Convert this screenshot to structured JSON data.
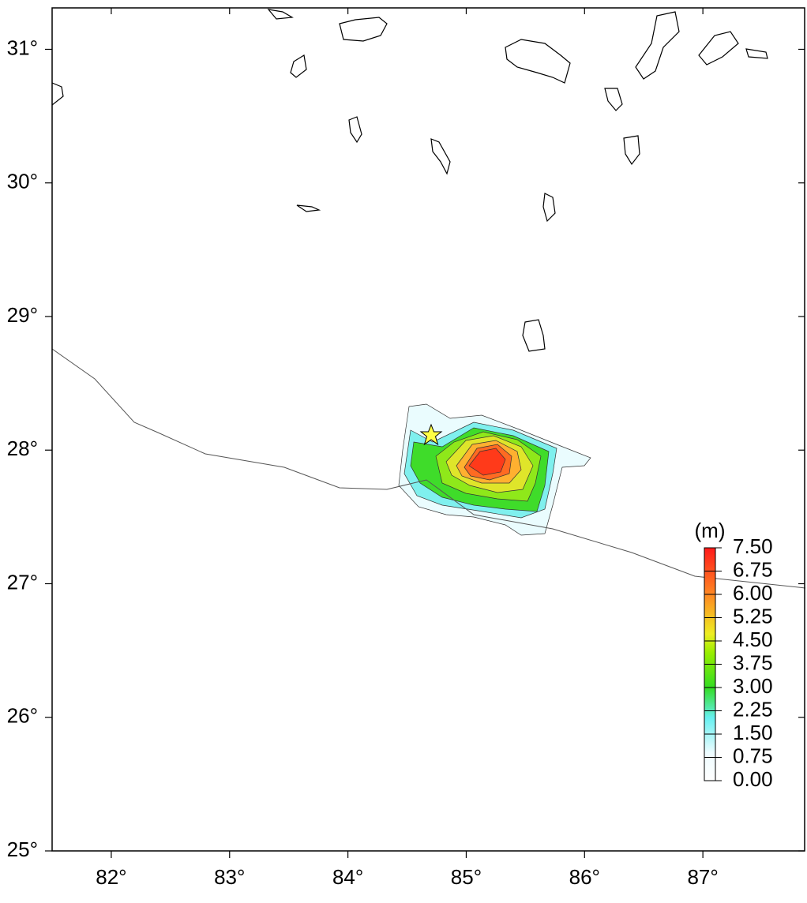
{
  "map": {
    "xlim": [
      81.5,
      87.86
    ],
    "ylim": [
      25,
      31.31
    ],
    "xticks": [
      {
        "value": 82,
        "label": "82°"
      },
      {
        "value": 83,
        "label": "83°"
      },
      {
        "value": 84,
        "label": "84°"
      },
      {
        "value": 85,
        "label": "85°"
      },
      {
        "value": 86,
        "label": "86°"
      },
      {
        "value": 87,
        "label": "87°"
      }
    ],
    "yticks": [
      {
        "value": 25,
        "label": "25°"
      },
      {
        "value": 26,
        "label": "26°"
      },
      {
        "value": 27,
        "label": "27°"
      },
      {
        "value": 28,
        "label": "28°"
      },
      {
        "value": 29,
        "label": "29°"
      },
      {
        "value": 30,
        "label": "30°"
      },
      {
        "value": 31,
        "label": "31°"
      }
    ],
    "colorbar": {
      "unit": "(m)",
      "lim": [
        0,
        7.5
      ],
      "ticks": [
        {
          "value": 0,
          "label": "0.00"
        },
        {
          "value": 0.75,
          "label": "0.75"
        },
        {
          "value": 1.5,
          "label": "1.50"
        },
        {
          "value": 2.25,
          "label": "2.25"
        },
        {
          "value": 3,
          "label": "3.00"
        },
        {
          "value": 3.75,
          "label": "3.75"
        },
        {
          "value": 4.5,
          "label": "4.50"
        },
        {
          "value": 5.25,
          "label": "5.25"
        },
        {
          "value": 6,
          "label": "6.00"
        },
        {
          "value": 6.75,
          "label": "6.75"
        },
        {
          "value": 7.5,
          "label": "7.50"
        }
      ]
    }
  }
}
